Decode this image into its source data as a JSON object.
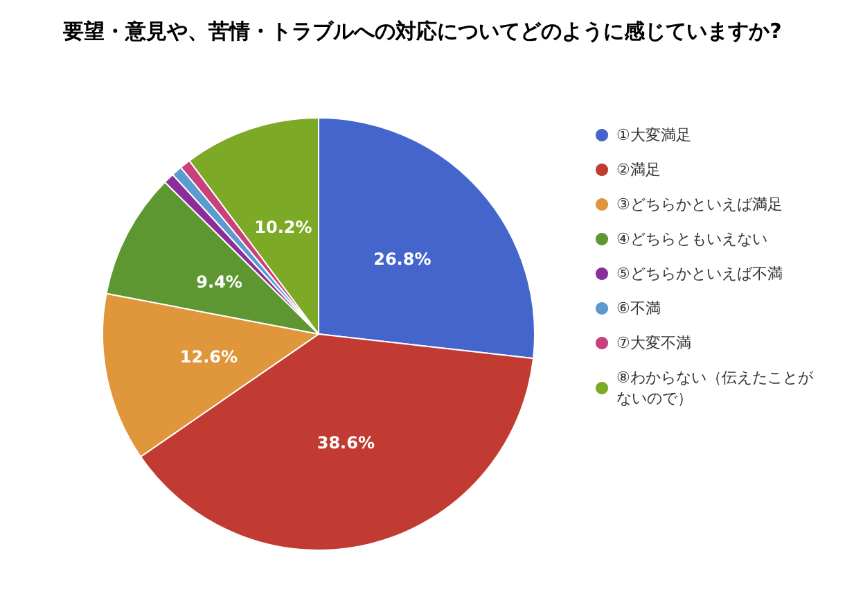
{
  "chart_data": {
    "type": "pie",
    "title": "要望・意見や、苦情・トラブルへの対応についてどのように感じていますか?",
    "categories": [
      "①大変満足",
      "②満足",
      "③どちらかといえば満足",
      "④どちらともいえない",
      "⑤どちらかといえば不満",
      "⑥不満",
      "⑦大変不満",
      "⑧わからない（伝えたことがないので）"
    ],
    "values": [
      26.8,
      38.6,
      12.6,
      9.4,
      0.8,
      0.8,
      0.8,
      10.2
    ],
    "value_labels": [
      "26.8%",
      "38.6%",
      "12.6%",
      "9.4%",
      null,
      null,
      null,
      "10.2%"
    ],
    "colors": [
      "#4466cc",
      "#c23b32",
      "#e0963a",
      "#5e9631",
      "#8b2e9c",
      "#5a9bd0",
      "#c9407a",
      "#7caa27"
    ],
    "legend": "right"
  }
}
